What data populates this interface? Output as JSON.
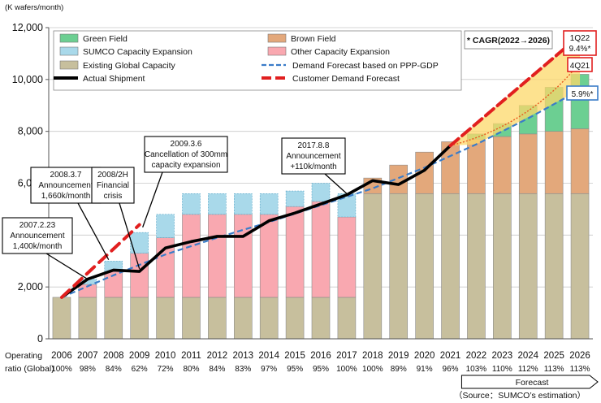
{
  "chart_data": {
    "type": "bar",
    "unit_label": "(K wafers/month)",
    "categories": [
      "2006",
      "2007",
      "2008",
      "2009",
      "2010",
      "2011",
      "2012",
      "2013",
      "2014",
      "2015",
      "2016",
      "2017",
      "2018",
      "2019",
      "2020",
      "2021",
      "2022",
      "2023",
      "2024",
      "2025",
      "2026"
    ],
    "operating_ratio_label": [
      "Operating",
      "ratio (Global)"
    ],
    "operating_ratio": [
      "100%",
      "98%",
      "84%",
      "62%",
      "72%",
      "80%",
      "84%",
      "83%",
      "97%",
      "95%",
      "95%",
      "100%",
      "100%",
      "89%",
      "91%",
      "96%",
      "103%",
      "110%",
      "112%",
      "113%",
      "113%"
    ],
    "ylim": [
      0,
      12000
    ],
    "yticks": [
      0,
      2000,
      4000,
      6000,
      8000,
      10000,
      12000
    ],
    "ytick_labels": [
      "0",
      "2,000",
      "4,000",
      "6,000",
      "8,000",
      "10,000",
      "12,000"
    ],
    "stacked_series": [
      {
        "name": "Existing Global Capacity",
        "color": "#c7bf9d",
        "values": [
          1600,
          1600,
          1600,
          1600,
          1600,
          1600,
          1600,
          1600,
          1600,
          1600,
          1600,
          1600,
          5600,
          5600,
          5600,
          5600,
          5600,
          5600,
          5600,
          5600,
          5600
        ]
      },
      {
        "name": "Other Capacity Expansion",
        "color": "#f9a8b0",
        "values": [
          0,
          500,
          1000,
          1700,
          2300,
          3200,
          3200,
          3200,
          3200,
          3500,
          3700,
          3100,
          0,
          0,
          0,
          0,
          0,
          0,
          0,
          0,
          0
        ]
      },
      {
        "name": "Brown Field",
        "color": "#e3a87b",
        "values": [
          0,
          0,
          0,
          0,
          0,
          0,
          0,
          0,
          0,
          0,
          0,
          0,
          600,
          1100,
          1600,
          2000,
          2100,
          2200,
          2300,
          2400,
          2500
        ]
      },
      {
        "name": "SUMCO Capacity Expansion",
        "color": "#a9d9ea",
        "values": [
          0,
          200,
          400,
          800,
          900,
          800,
          800,
          800,
          800,
          600,
          700,
          900,
          0,
          0,
          0,
          0,
          0,
          0,
          0,
          0,
          0
        ]
      },
      {
        "name": "Green Field",
        "color": "#6ccf92",
        "values": [
          0,
          0,
          0,
          0,
          0,
          0,
          0,
          0,
          0,
          0,
          0,
          0,
          0,
          0,
          0,
          0,
          200,
          500,
          1100,
          1700,
          2100
        ]
      }
    ],
    "lines": [
      {
        "name": "Actual Shipment",
        "color": "#000000",
        "x": [
          "2006",
          "2007",
          "2008",
          "2009",
          "2010",
          "2011",
          "2012",
          "2013",
          "2014",
          "2015",
          "2016",
          "2017",
          "2018",
          "2019",
          "2020",
          "2021"
        ],
        "values": [
          1600,
          2300,
          2650,
          2600,
          3500,
          3750,
          3950,
          3950,
          4550,
          4850,
          5200,
          5550,
          6100,
          5950,
          6500,
          7450
        ]
      },
      {
        "name": "Demand Forecast based on PPP-GDP",
        "color": "#3a7cc8",
        "x": [
          "2006",
          "2008",
          "2010",
          "2012",
          "2014",
          "2016",
          "2018",
          "2020",
          "2022",
          "2024",
          "2026"
        ],
        "values": [
          1600,
          2450,
          3250,
          3900,
          4500,
          5150,
          5800,
          6600,
          7500,
          8500,
          9600
        ]
      },
      {
        "name": "Customer Demand Forecast",
        "color": "#e11f1f",
        "x": [
          "2006",
          "2009",
          "2021",
          "2026"
        ],
        "values": [
          1600,
          4400,
          7450,
          11700
        ]
      }
    ],
    "legend": {
      "placement": "top-left",
      "items": [
        "Green Field",
        "Brown Field",
        "SUMCO Capacity Expansion",
        "Other Capacity Expansion",
        "Existing Global Capacity",
        "Demand Forecast based on PPP-GDP",
        "Actual Shipment",
        "Customer Demand Forecast"
      ]
    },
    "annotations": [
      {
        "id": "a2007",
        "text": [
          "2007.2.23",
          "Announcement",
          "1,400k/month"
        ]
      },
      {
        "id": "a2008",
        "text": [
          "2008.3.7",
          "Announcement",
          "1,660k/month"
        ]
      },
      {
        "id": "a2008h",
        "text": [
          "2008/2H",
          "Financial",
          "crisis"
        ]
      },
      {
        "id": "a2009",
        "text": [
          "2009.3.6",
          "Cancellation  of 300mm",
          "capacity expansion"
        ]
      },
      {
        "id": "a2017",
        "text": [
          "2017.8.8",
          "Announcement",
          "+110k/month"
        ]
      }
    ],
    "cagr_title": "* CAGR(2022→2026)",
    "cagr_1q22": {
      "period": "1Q22",
      "value": "9.4%*"
    },
    "cagr_4q21": {
      "period": "4Q21"
    },
    "cagr_gdp": {
      "value": "5.9%*"
    },
    "forecast_label": "Forecast",
    "source": "（Source：SUMCO’s estimation）",
    "colors": {
      "red": "#e11f1f",
      "blue": "#3a7cc8",
      "forecast_fill": "#fcd86a"
    }
  }
}
